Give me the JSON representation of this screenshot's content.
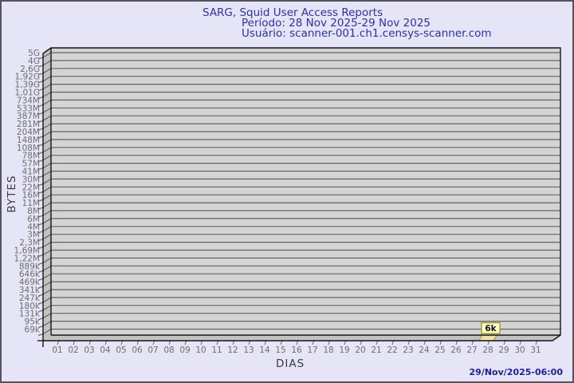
{
  "header": {
    "title": "SARG, Squid User Access Reports",
    "period_line": "Período: 28 Nov 2025-29 Nov 2025",
    "user_line": "Usuário: scanner-001.ch1.censys-scanner.com"
  },
  "footer": {
    "generated": "29/Nov/2025-06:00"
  },
  "chart_data": {
    "type": "bar",
    "style_3d": true,
    "title": "SARG, Squid User Access Reports",
    "subtitle_period": "28 Nov 2025-29 Nov 2025",
    "subtitle_user": "scanner-001.ch1.censys-scanner.com",
    "xlabel": "DIAS",
    "ylabel": "BYTES",
    "grid": true,
    "x_categories": [
      "01",
      "02",
      "03",
      "04",
      "05",
      "06",
      "07",
      "08",
      "09",
      "10",
      "11",
      "12",
      "13",
      "14",
      "15",
      "16",
      "17",
      "18",
      "19",
      "20",
      "21",
      "22",
      "23",
      "24",
      "25",
      "26",
      "27",
      "28",
      "29",
      "30",
      "31"
    ],
    "y_tick_labels": [
      "5G",
      "4G",
      "2,6G",
      "1,92G",
      "1,39G",
      "1,01G",
      "734M",
      "533M",
      "387M",
      "281M",
      "204M",
      "148M",
      "108M",
      "78M",
      "57M",
      "41M",
      "30M",
      "22M",
      "16M",
      "11M",
      "8M",
      "6M",
      "4M",
      "3M",
      "2,3M",
      "1,69M",
      "1,22M",
      "889k",
      "646k",
      "469k",
      "341k",
      "247k",
      "180k",
      "131k",
      "95k",
      "69k"
    ],
    "values_bytes": [
      null,
      null,
      null,
      null,
      null,
      null,
      null,
      null,
      null,
      null,
      null,
      null,
      null,
      null,
      null,
      null,
      null,
      null,
      null,
      null,
      null,
      null,
      null,
      null,
      null,
      null,
      null,
      6000,
      null,
      null,
      null
    ],
    "bars": [
      {
        "day": "28",
        "value_label": "6k",
        "approx_value_bytes": 6000
      }
    ]
  },
  "colors": {
    "background": "#E5E5F7",
    "page_border": "#54545c",
    "title_text": "#2F2FAC",
    "timestamp_text": "#1f1f9e",
    "axis_title_text": "#3b3b3b",
    "tick_text": "#6e6e6e",
    "plot_fill": "#D4D4D4",
    "wall_fill": "#C2C2C2",
    "grid": "#646464",
    "outline": "#161616",
    "bar_fill": "#F0E2A2",
    "bar_stroke": "#9c8d42",
    "bar_label_box_fill": "#FFFFC9",
    "bar_label_box_stroke": "#A29437"
  }
}
